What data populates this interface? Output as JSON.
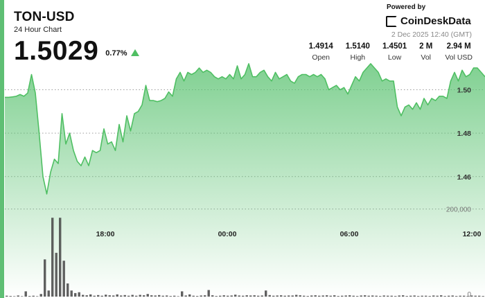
{
  "header": {
    "symbol": "TON-USD",
    "subtitle": "24 Hour Chart",
    "price": "1.5029",
    "change": "0.77%"
  },
  "brand": {
    "powered_by": "Powered by",
    "name": "CoinDeskData",
    "timestamp": "2 Dec 2025 12:40 (GMT)"
  },
  "stats": [
    {
      "value": "1.4914",
      "label": "Open"
    },
    {
      "value": "1.5140",
      "label": "High"
    },
    {
      "value": "1.4501",
      "label": "Low"
    },
    {
      "value": "2 M",
      "label": "Vol"
    },
    {
      "value": "2.94 M",
      "label": "Vol USD"
    }
  ],
  "colors": {
    "line": "#4fbf63",
    "fill_top": "#5cc372",
    "volume": "#444444",
    "accent": "#5fbf74"
  },
  "chart_data": {
    "type": "line",
    "title": "TON-USD",
    "price_axis": {
      "ylim": [
        1.436,
        1.511
      ],
      "ticks": [
        1.46,
        1.48,
        1.5
      ],
      "tick_labels": [
        "1.46",
        "1.48",
        "1.50"
      ],
      "side": "right"
    },
    "time_axis": {
      "tick_labels": [
        "18:00",
        "00:00",
        "06:00",
        "12:00"
      ]
    },
    "volume_axis": {
      "tick_labels": [
        "200,000",
        "0"
      ],
      "ticks": [
        200000,
        0
      ],
      "ylim": [
        0,
        250000
      ]
    },
    "price_series": [
      1.4965,
      1.4965,
      1.4967,
      1.497,
      1.4978,
      1.497,
      1.4985,
      1.507,
      1.4985,
      1.48,
      1.46,
      1.452,
      1.462,
      1.468,
      1.466,
      1.489,
      1.475,
      1.48,
      1.472,
      1.467,
      1.465,
      1.469,
      1.465,
      1.472,
      1.471,
      1.472,
      1.482,
      1.475,
      1.476,
      1.472,
      1.484,
      1.476,
      1.488,
      1.481,
      1.489,
      1.49,
      1.493,
      1.502,
      1.495,
      1.495,
      1.4945,
      1.495,
      1.496,
      1.499,
      1.497,
      1.505,
      1.508,
      1.504,
      1.508,
      1.507,
      1.508,
      1.51,
      1.508,
      1.509,
      1.508,
      1.506,
      1.505,
      1.506,
      1.505,
      1.507,
      1.505,
      1.511,
      1.505,
      1.507,
      1.512,
      1.506,
      1.506,
      1.508,
      1.509,
      1.506,
      1.504,
      1.508,
      1.505,
      1.506,
      1.507,
      1.504,
      1.503,
      1.506,
      1.507,
      1.507,
      1.506,
      1.507,
      1.506,
      1.507,
      1.505,
      1.5,
      1.501,
      1.502,
      1.5,
      1.501,
      1.498,
      1.502,
      1.506,
      1.504,
      1.508,
      1.51,
      1.512,
      1.51,
      1.508,
      1.504,
      1.505,
      1.504,
      1.504,
      1.492,
      1.488,
      1.492,
      1.493,
      1.491,
      1.494,
      1.491,
      1.496,
      1.493,
      1.496,
      1.495,
      1.497,
      1.497,
      1.496,
      1.504,
      1.508,
      1.504,
      1.509,
      1.506,
      1.507,
      1.51,
      1.51,
      1.508,
      1.506
    ],
    "volume_series": [
      2000,
      1500,
      1000,
      2500,
      1000,
      12000,
      1500,
      2000,
      1000,
      6000,
      85000,
      14000,
      180000,
      100000,
      180000,
      82000,
      30000,
      14000,
      8000,
      10000,
      4000,
      3000,
      5000,
      2000,
      3500,
      2000,
      4500,
      3000,
      2500,
      5000,
      2500,
      3500,
      2000,
      4000,
      2000,
      4000,
      3000,
      6000,
      3000,
      2500,
      3500,
      2000,
      2500,
      1500,
      2000,
      1000,
      12000,
      2500,
      5000,
      2000,
      1500,
      2500,
      3000,
      15000,
      3000,
      1500,
      2000,
      3000,
      2000,
      2500,
      4500,
      2500,
      2000,
      3000,
      2500,
      3000,
      2000,
      2500,
      14000,
      3500,
      2000,
      2500,
      3000,
      2000,
      2500,
      2500,
      4000,
      3000,
      2000,
      1500,
      2500,
      3000,
      2000,
      2500,
      3000,
      2000,
      3000,
      1500,
      2000,
      2500,
      3000,
      2000,
      1500,
      2500,
      3000,
      2000,
      2500,
      2000,
      1500,
      2500,
      2000,
      2000,
      1500,
      2500,
      3000,
      1500,
      2000,
      2500,
      1500,
      2000,
      2000,
      1500,
      2500,
      2000,
      3000,
      1500,
      2000,
      2500,
      1500,
      2000,
      2000,
      1500,
      2500,
      2000,
      2000,
      1500
    ]
  }
}
